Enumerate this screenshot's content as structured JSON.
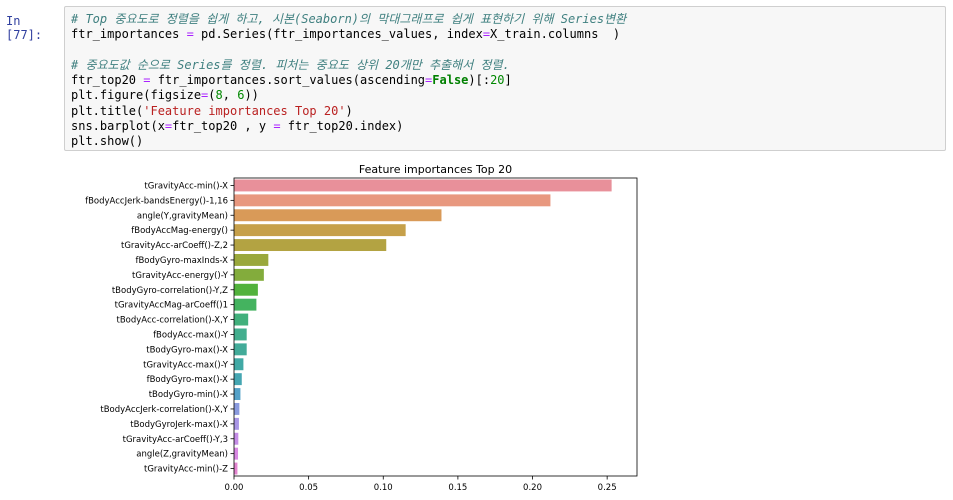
{
  "prompt": "In [77]:",
  "code_lines": [
    "# Top 중요도로 정렬을 쉽게 하고, 시본(Seaborn)의 막대그래프로 쉽게 표현하기 위해 Series변환",
    "ftr_importances = pd.Series(ftr_importances_values, index=X_train.columns  )",
    "",
    "# 중요도값 순으로 Series를 정렬. 피처는 중요도 상위 20개만 추출해서 정렬.",
    "ftr_top20 = ftr_importances.sort_values(ascending=False)[:20]",
    "plt.figure(figsize=(8, 6))",
    "plt.title('Feature importances Top 20')",
    "sns.barplot(x=ftr_top20 , y = ftr_top20.index)",
    "plt.show()"
  ],
  "chart_data": {
    "type": "bar",
    "orientation": "horizontal",
    "title": "Feature importances Top 20",
    "xlabel": "",
    "ylabel": "",
    "xlim": [
      0,
      0.27
    ],
    "xticks": [
      "0.00",
      "0.05",
      "0.10",
      "0.15",
      "0.20",
      "0.25"
    ],
    "categories": [
      "tGravityAcc-min()-X",
      "fBodyAccJerk-bandsEnergy()-1,16",
      "angle(Y,gravityMean)",
      "fBodyAccMag-energy()",
      "tGravityAcc-arCoeff()-Z,2",
      "fBodyGyro-maxInds-X",
      "tGravityAcc-energy()-Y",
      "tBodyGyro-correlation()-Y,Z",
      "tGravityAccMag-arCoeff()1",
      "tBodyAcc-correlation()-X,Y",
      "fBodyAcc-max()-Y",
      "tBodyGyro-max()-X",
      "tGravityAcc-max()-Y",
      "fBodyGyro-max()-X",
      "tBodyGyro-min()-X",
      "tBodyAccJerk-correlation()-X,Y",
      "tBodyGyroJerk-max()-X",
      "tGravityAcc-arCoeff()-Y,3",
      "angle(Z,gravityMean)",
      "tGravityAcc-min()-Z"
    ],
    "values": [
      0.253,
      0.212,
      0.139,
      0.115,
      0.102,
      0.023,
      0.02,
      0.016,
      0.015,
      0.0095,
      0.0085,
      0.0085,
      0.0063,
      0.0052,
      0.0043,
      0.0036,
      0.0033,
      0.0029,
      0.0027,
      0.0023
    ],
    "colors": [
      "#e8909a",
      "#e8987f",
      "#d99a58",
      "#c6a04a",
      "#b3a342",
      "#9aa83c",
      "#83ac3c",
      "#52b23c",
      "#44b35f",
      "#41b07c",
      "#43ae8e",
      "#42ab99",
      "#41a9a5",
      "#45a6b2",
      "#54a1c8",
      "#8a9ade",
      "#a996e6",
      "#c48de6",
      "#d888e3",
      "#e284cf"
    ]
  }
}
